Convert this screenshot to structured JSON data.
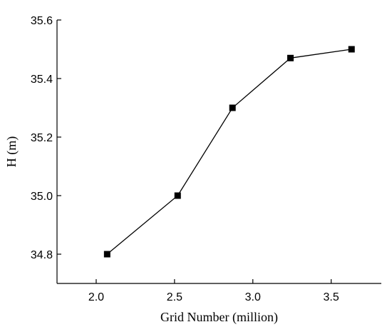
{
  "chart_data": {
    "type": "line",
    "xlabel": "Grid Number  (million)",
    "ylabel": "H (m)",
    "xlim": [
      1.75,
      3.82
    ],
    "ylim": [
      34.7,
      35.6
    ],
    "xticks": [
      2.0,
      2.5,
      3.0,
      3.5
    ],
    "xtick_labels": [
      "2.0",
      "2.5",
      "3.0",
      "3.5"
    ],
    "yticks": [
      34.8,
      35.0,
      35.2,
      35.4,
      35.6
    ],
    "ytick_labels": [
      "34.8",
      "35.0",
      "35.2",
      "35.4",
      "35.6"
    ],
    "grid": false,
    "marker": "square",
    "series": [
      {
        "x": [
          2.07,
          2.52,
          2.87,
          3.24,
          3.63
        ],
        "y": [
          34.8,
          35.0,
          35.3,
          35.47,
          35.5
        ]
      }
    ]
  }
}
